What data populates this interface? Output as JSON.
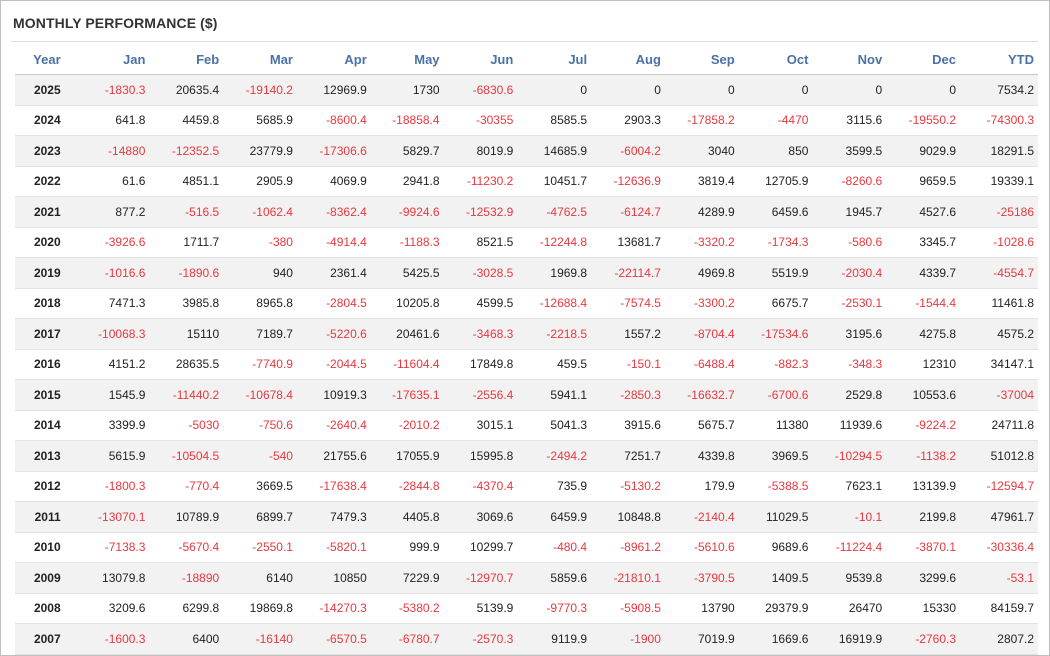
{
  "panel": {
    "title": "MONTHLY PERFORMANCE ($)"
  },
  "colors": {
    "header_text": "#4a72a8",
    "negative": "#e8383f",
    "positive": "#222222",
    "stripe": "#f2f2f2"
  },
  "chart_data": {
    "type": "table",
    "title": "MONTHLY PERFORMANCE ($)",
    "columns": [
      "Year",
      "Jan",
      "Feb",
      "Mar",
      "Apr",
      "May",
      "Jun",
      "Jul",
      "Aug",
      "Sep",
      "Oct",
      "Nov",
      "Dec",
      "YTD"
    ],
    "rows": [
      [
        "2025",
        "-1830.3",
        "20635.4",
        "-19140.2",
        "12969.9",
        "1730",
        "-6830.6",
        "0",
        "0",
        "0",
        "0",
        "0",
        "0",
        "7534.2"
      ],
      [
        "2024",
        "641.8",
        "4459.8",
        "5685.9",
        "-8600.4",
        "-18858.4",
        "-30355",
        "8585.5",
        "2903.3",
        "-17858.2",
        "-4470",
        "3115.6",
        "-19550.2",
        "-74300.3"
      ],
      [
        "2023",
        "-14880",
        "-12352.5",
        "23779.9",
        "-17306.6",
        "5829.7",
        "8019.9",
        "14685.9",
        "-6004.2",
        "3040",
        "850",
        "3599.5",
        "9029.9",
        "18291.5"
      ],
      [
        "2022",
        "61.6",
        "4851.1",
        "2905.9",
        "4069.9",
        "2941.8",
        "-11230.2",
        "10451.7",
        "-12636.9",
        "3819.4",
        "12705.9",
        "-8260.6",
        "9659.5",
        "19339.1"
      ],
      [
        "2021",
        "877.2",
        "-516.5",
        "-1062.4",
        "-8362.4",
        "-9924.6",
        "-12532.9",
        "-4762.5",
        "-6124.7",
        "4289.9",
        "6459.6",
        "1945.7",
        "4527.6",
        "-25186"
      ],
      [
        "2020",
        "-3926.6",
        "1711.7",
        "-380",
        "-4914.4",
        "-1188.3",
        "8521.5",
        "-12244.8",
        "13681.7",
        "-3320.2",
        "-1734.3",
        "-580.6",
        "3345.7",
        "-1028.6"
      ],
      [
        "2019",
        "-1016.6",
        "-1890.6",
        "940",
        "2361.4",
        "5425.5",
        "-3028.5",
        "1969.8",
        "-22114.7",
        "4969.8",
        "5519.9",
        "-2030.4",
        "4339.7",
        "-4554.7"
      ],
      [
        "2018",
        "7471.3",
        "3985.8",
        "8965.8",
        "-2804.5",
        "10205.8",
        "4599.5",
        "-12688.4",
        "-7574.5",
        "-3300.2",
        "6675.7",
        "-2530.1",
        "-1544.4",
        "11461.8"
      ],
      [
        "2017",
        "-10068.3",
        "15110",
        "7189.7",
        "-5220.6",
        "20461.6",
        "-3468.3",
        "-2218.5",
        "1557.2",
        "-8704.4",
        "-17534.6",
        "3195.6",
        "4275.8",
        "4575.2"
      ],
      [
        "2016",
        "4151.2",
        "28635.5",
        "-7740.9",
        "-2044.5",
        "-11604.4",
        "17849.8",
        "459.5",
        "-150.1",
        "-6488.4",
        "-882.3",
        "-348.3",
        "12310",
        "34147.1"
      ],
      [
        "2015",
        "1545.9",
        "-11440.2",
        "-10678.4",
        "10919.3",
        "-17635.1",
        "-2556.4",
        "5941.1",
        "-2850.3",
        "-16632.7",
        "-6700.6",
        "2529.8",
        "10553.6",
        "-37004"
      ],
      [
        "2014",
        "3399.9",
        "-5030",
        "-750.6",
        "-2640.4",
        "-2010.2",
        "3015.1",
        "5041.3",
        "3915.6",
        "5675.7",
        "11380",
        "11939.6",
        "-9224.2",
        "24711.8"
      ],
      [
        "2013",
        "5615.9",
        "-10504.5",
        "-540",
        "21755.6",
        "17055.9",
        "15995.8",
        "-2494.2",
        "7251.7",
        "4339.8",
        "3969.5",
        "-10294.5",
        "-1138.2",
        "51012.8"
      ],
      [
        "2012",
        "-1800.3",
        "-770.4",
        "3669.5",
        "-17638.4",
        "-2844.8",
        "-4370.4",
        "735.9",
        "-5130.2",
        "179.9",
        "-5388.5",
        "7623.1",
        "13139.9",
        "-12594.7"
      ],
      [
        "2011",
        "-13070.1",
        "10789.9",
        "6899.7",
        "7479.3",
        "4405.8",
        "3069.6",
        "6459.9",
        "10848.8",
        "-2140.4",
        "11029.5",
        "-10.1",
        "2199.8",
        "47961.7"
      ],
      [
        "2010",
        "-7138.3",
        "-5670.4",
        "-2550.1",
        "-5820.1",
        "999.9",
        "10299.7",
        "-480.4",
        "-8961.2",
        "-5610.6",
        "9689.6",
        "-11224.4",
        "-3870.1",
        "-30336.4"
      ],
      [
        "2009",
        "13079.8",
        "-18890",
        "6140",
        "10850",
        "7229.9",
        "-12970.7",
        "5859.6",
        "-21810.1",
        "-3790.5",
        "1409.5",
        "9539.8",
        "3299.6",
        "-53.1"
      ],
      [
        "2008",
        "3209.6",
        "6299.8",
        "19869.8",
        "-14270.3",
        "-5380.2",
        "5139.9",
        "-9770.3",
        "-5908.5",
        "13790",
        "29379.9",
        "26470",
        "15330",
        "84159.7"
      ],
      [
        "2007",
        "-1600.3",
        "6400",
        "-16140",
        "-6570.5",
        "-6780.7",
        "-2570.3",
        "9119.9",
        "-1900",
        "7019.9",
        "1669.6",
        "16919.9",
        "-2760.3",
        "2807.2"
      ]
    ]
  }
}
